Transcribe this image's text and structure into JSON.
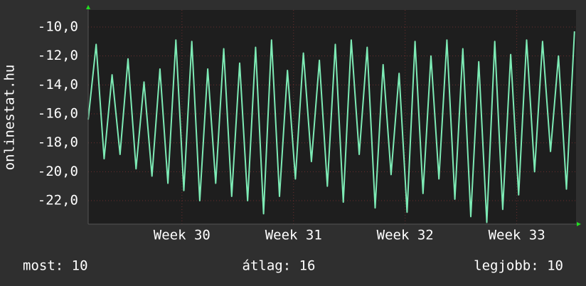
{
  "chart_data": {
    "type": "line",
    "y_label": "onlinestat.hu",
    "x": [
      0,
      0.5,
      1,
      1.5,
      2,
      2.5,
      3,
      3.5,
      4,
      4.5,
      5,
      5.5,
      6,
      6.5,
      7,
      7.5,
      8,
      8.5,
      9,
      9.5,
      10,
      10.5,
      11,
      11.5,
      12,
      12.5,
      13,
      13.5,
      14,
      14.5,
      15,
      15.5,
      16,
      16.5,
      17,
      17.5,
      18,
      18.5,
      19,
      19.5,
      20,
      20.5,
      21,
      21.5,
      22,
      22.5,
      23,
      23.5,
      24,
      24.5,
      25,
      25.5,
      26,
      26.5,
      27,
      27.5,
      28,
      28.5,
      29,
      29.5,
      30,
      30.5
    ],
    "series": [
      {
        "color": "#7debb5",
        "values": [
          -16.4,
          -11.2,
          -19.1,
          -13.3,
          -18.8,
          -12.2,
          -19.8,
          -13.8,
          -20.3,
          -12.9,
          -20.8,
          -10.9,
          -21.3,
          -11.0,
          -22.0,
          -12.9,
          -20.8,
          -11.5,
          -21.7,
          -12.5,
          -22.0,
          -11.4,
          -22.9,
          -10.9,
          -21.7,
          -13.0,
          -20.5,
          -11.8,
          -19.3,
          -12.3,
          -21.0,
          -11.2,
          -22.1,
          -10.9,
          -18.8,
          -11.4,
          -22.5,
          -12.6,
          -20.2,
          -13.2,
          -22.8,
          -11.0,
          -21.5,
          -12.0,
          -20.5,
          -10.9,
          -21.9,
          -11.5,
          -23.1,
          -12.4,
          -23.5,
          -11.0,
          -22.6,
          -11.9,
          -21.6,
          -10.9,
          -20.0,
          -11.0,
          -18.6,
          -12.0,
          -21.2,
          -10.3
        ]
      }
    ],
    "xlim": [
      0,
      30.6
    ],
    "ylim": [
      -23.62,
      -8.82
    ],
    "xticks": [
      {
        "value": 5.88,
        "label": "Week 30"
      },
      {
        "value": 12.88,
        "label": "Week 31"
      },
      {
        "value": 19.88,
        "label": "Week 32"
      },
      {
        "value": 26.88,
        "label": "Week 33"
      }
    ],
    "yticks": [
      {
        "value": -22,
        "label": "-22,0"
      },
      {
        "value": -20,
        "label": "-20,0"
      },
      {
        "value": -18,
        "label": "-18,0"
      },
      {
        "value": -16,
        "label": "-16,0"
      },
      {
        "value": -14,
        "label": "-14,0"
      },
      {
        "value": -12,
        "label": "-12,0"
      },
      {
        "value": -10,
        "label": "-10,0"
      }
    ],
    "grid": true,
    "footer": {
      "current": "most: 10",
      "average": "átlag: 16",
      "best": "legjobb: 10"
    }
  }
}
